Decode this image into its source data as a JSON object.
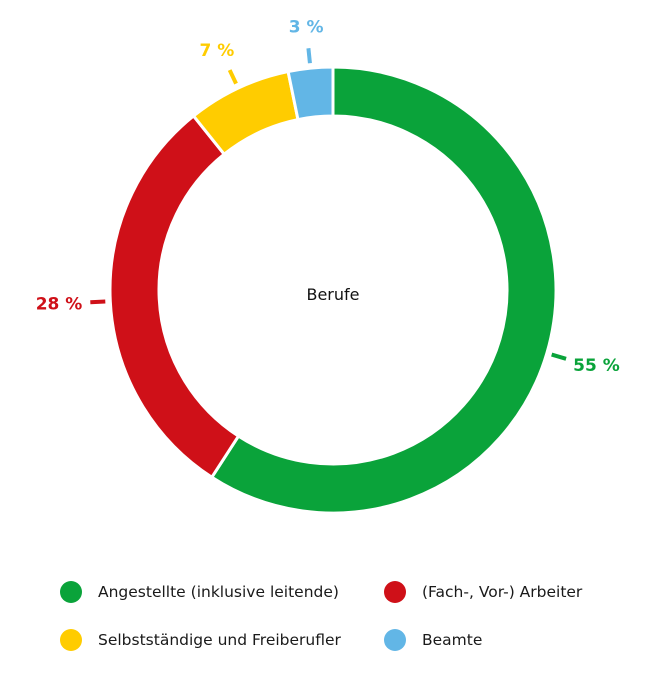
{
  "chart_data": {
    "type": "pie",
    "donut": true,
    "center_label": "Berufe",
    "categories": [
      "Angestellte (inklusive leitende)",
      "(Fach-, Vor-) Arbeiter",
      "Selbstständige und Freiberufler",
      "Beamte"
    ],
    "values": [
      55,
      28,
      7,
      3
    ],
    "value_labels": [
      "55 %",
      "28 %",
      "7 %",
      "3 %"
    ],
    "colors": [
      "#0aa33a",
      "#cf1018",
      "#ffcc00",
      "#62b6e6"
    ],
    "legend_placement": "bottom"
  }
}
